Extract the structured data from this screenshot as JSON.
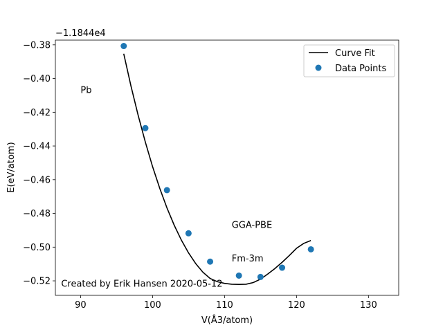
{
  "chart_data": {
    "type": "scatter",
    "offset_text": "−1.1844e4",
    "xlabel": "V(Å3/atom)",
    "ylabel": "E(eV/atom)",
    "xlim": [
      86.5,
      134.2
    ],
    "ylim": [
      -0.5286,
      -0.3772
    ],
    "xticks": [
      90,
      100,
      110,
      120,
      130
    ],
    "yticks": [
      -0.38,
      -0.4,
      -0.42,
      -0.44,
      -0.46,
      -0.48,
      -0.5,
      -0.52
    ],
    "ytick_labels": [
      "−0.38",
      "−0.40",
      "−0.42",
      "−0.44",
      "−0.46",
      "−0.48",
      "−0.50",
      "−0.52"
    ],
    "grid": false,
    "legend_position": "top-right",
    "series": [
      {
        "name": "Data Points",
        "kind": "scatter",
        "color": "#1f77b4",
        "x": [
          96,
          99,
          102,
          105,
          108,
          112,
          115,
          118,
          122
        ],
        "y": [
          -0.3807,
          -0.4294,
          -0.4662,
          -0.4918,
          -0.5086,
          -0.5169,
          -0.5177,
          -0.5122,
          -0.5013
        ]
      },
      {
        "name": "Curve Fit",
        "kind": "line",
        "color": "#000000",
        "x": [
          96,
          97,
          98,
          99,
          100,
          101,
          102,
          103,
          104,
          105,
          106,
          107,
          108,
          109,
          110,
          111,
          112,
          113,
          114,
          115,
          116,
          117,
          118,
          119,
          120,
          121,
          122
        ],
        "y": [
          -0.3853,
          -0.4044,
          -0.4218,
          -0.4377,
          -0.4522,
          -0.4651,
          -0.4767,
          -0.4869,
          -0.4958,
          -0.5034,
          -0.5098,
          -0.5149,
          -0.5186,
          -0.5205,
          -0.5215,
          -0.522,
          -0.5221,
          -0.522,
          -0.521,
          -0.519,
          -0.516,
          -0.5127,
          -0.509,
          -0.505,
          -0.5007,
          -0.4978,
          -0.4961
        ]
      }
    ],
    "annotations": [
      {
        "text": "Pb",
        "x": 90,
        "y": -0.4085
      },
      {
        "text": "GGA-PBE",
        "x": 111,
        "y": -0.4885
      },
      {
        "text": "Fm-3m",
        "x": 111,
        "y": -0.5085
      },
      {
        "text": "Created by Erik Hansen 2020-05-12",
        "x": 87.3,
        "y": -0.5235
      }
    ]
  }
}
